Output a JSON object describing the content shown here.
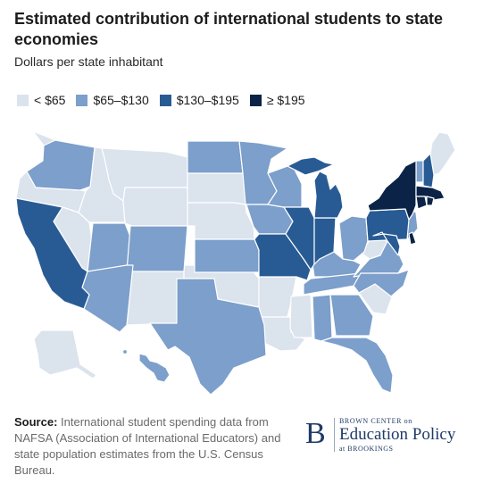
{
  "title": "Estimated contribution of international students to state economies",
  "subtitle": "Dollars per state inhabitant",
  "legend": [
    {
      "label": "< $65",
      "color": "#dbe3ed"
    },
    {
      "label": "$65–$130",
      "color": "#7c9fcb"
    },
    {
      "label": "$130–$195",
      "color": "#285b94"
    },
    {
      "label": "≥ $195",
      "color": "#0b2346"
    }
  ],
  "source": {
    "label": "Source:",
    "text": "International student spending data from NAFSA (Association of International Educators) and state population estimates from the U.S. Census Bureau."
  },
  "logo": {
    "letter": "B",
    "top": "BROWN CENTER on",
    "main": "Education Policy",
    "bottom": "at BROOKINGS"
  }
}
